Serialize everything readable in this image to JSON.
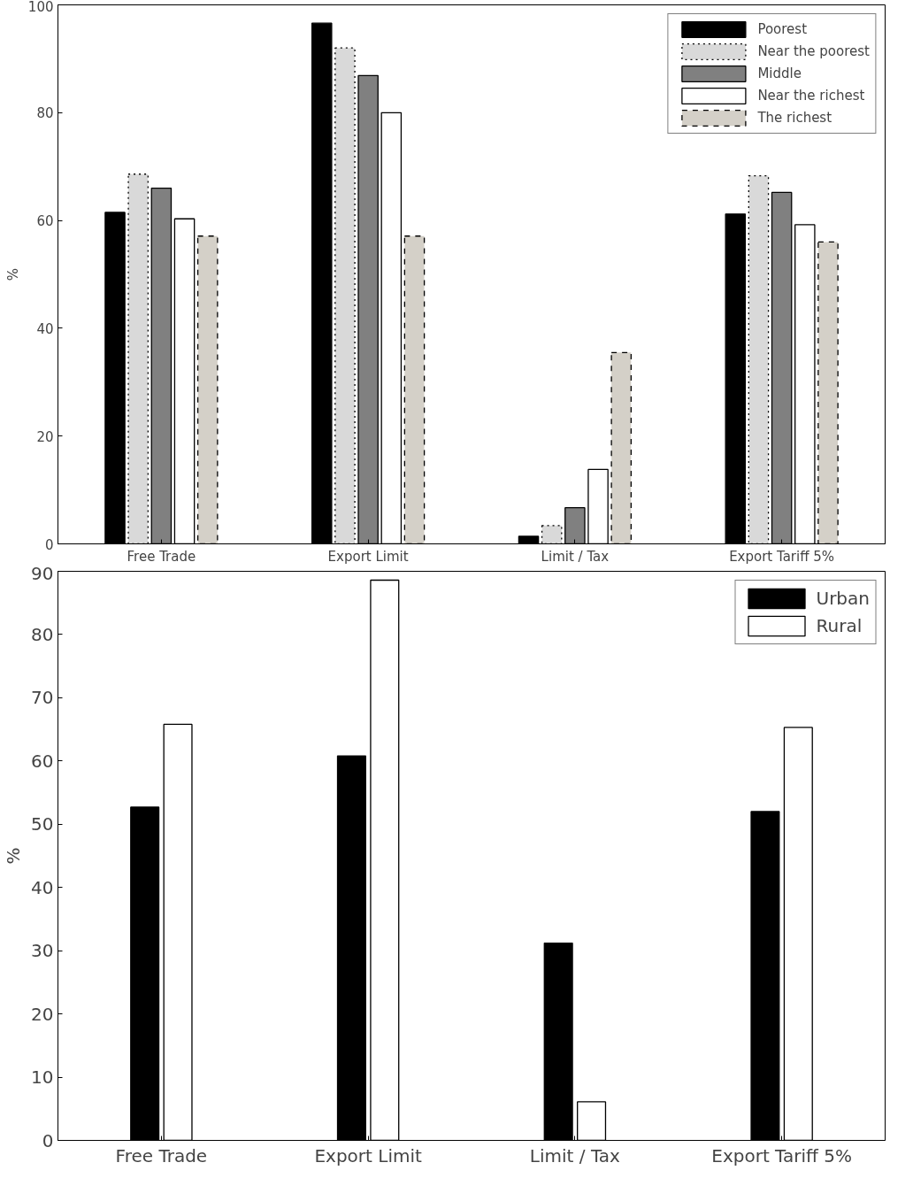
{
  "chart_data": [
    {
      "type": "bar",
      "ylabel": "%",
      "categories": [
        "Free Trade",
        "Export Limit",
        "Limit / Tax",
        "Export Tariff 5%"
      ],
      "ylim": [
        0,
        100
      ],
      "yticks": [
        0,
        20,
        40,
        60,
        80,
        100
      ],
      "legend": "top right",
      "series": [
        {
          "name": "Poorest",
          "color": "#000000",
          "line_style": "solid",
          "values": [
            61.5,
            96.6,
            1.4,
            61.2
          ]
        },
        {
          "name": "Near the poorest",
          "color": "#d9d9d9",
          "line_style": "dotted",
          "values": [
            68.6,
            92,
            3.4,
            68.3
          ]
        },
        {
          "name": "Middle",
          "color": "#808080",
          "line_style": "solid",
          "values": [
            66,
            86.9,
            6.7,
            65.2
          ]
        },
        {
          "name": "Near the richest",
          "color": "#ffffff",
          "line_style": "solid",
          "values": [
            60.3,
            80,
            13.8,
            59.2
          ]
        },
        {
          "name": "The richest",
          "color": "#d4d0c8",
          "line_style": "dashed",
          "values": [
            57.1,
            57.1,
            35.5,
            56
          ]
        }
      ]
    },
    {
      "type": "bar",
      "ylabel": "%",
      "categories": [
        "Free Trade",
        "Export Limit",
        "Limit / Tax",
        "Export Tariff 5%"
      ],
      "ylim": [
        0,
        90
      ],
      "yticks": [
        0,
        10,
        20,
        30,
        40,
        50,
        60,
        70,
        80,
        90
      ],
      "legend": "top right",
      "series": [
        {
          "name": "Urban",
          "color": "#000000",
          "values": [
            52.7,
            60.8,
            31.2,
            52
          ]
        },
        {
          "name": "Rural",
          "color": "#ffffff",
          "values": [
            65.8,
            88.6,
            6.1,
            65.3
          ]
        }
      ]
    }
  ]
}
